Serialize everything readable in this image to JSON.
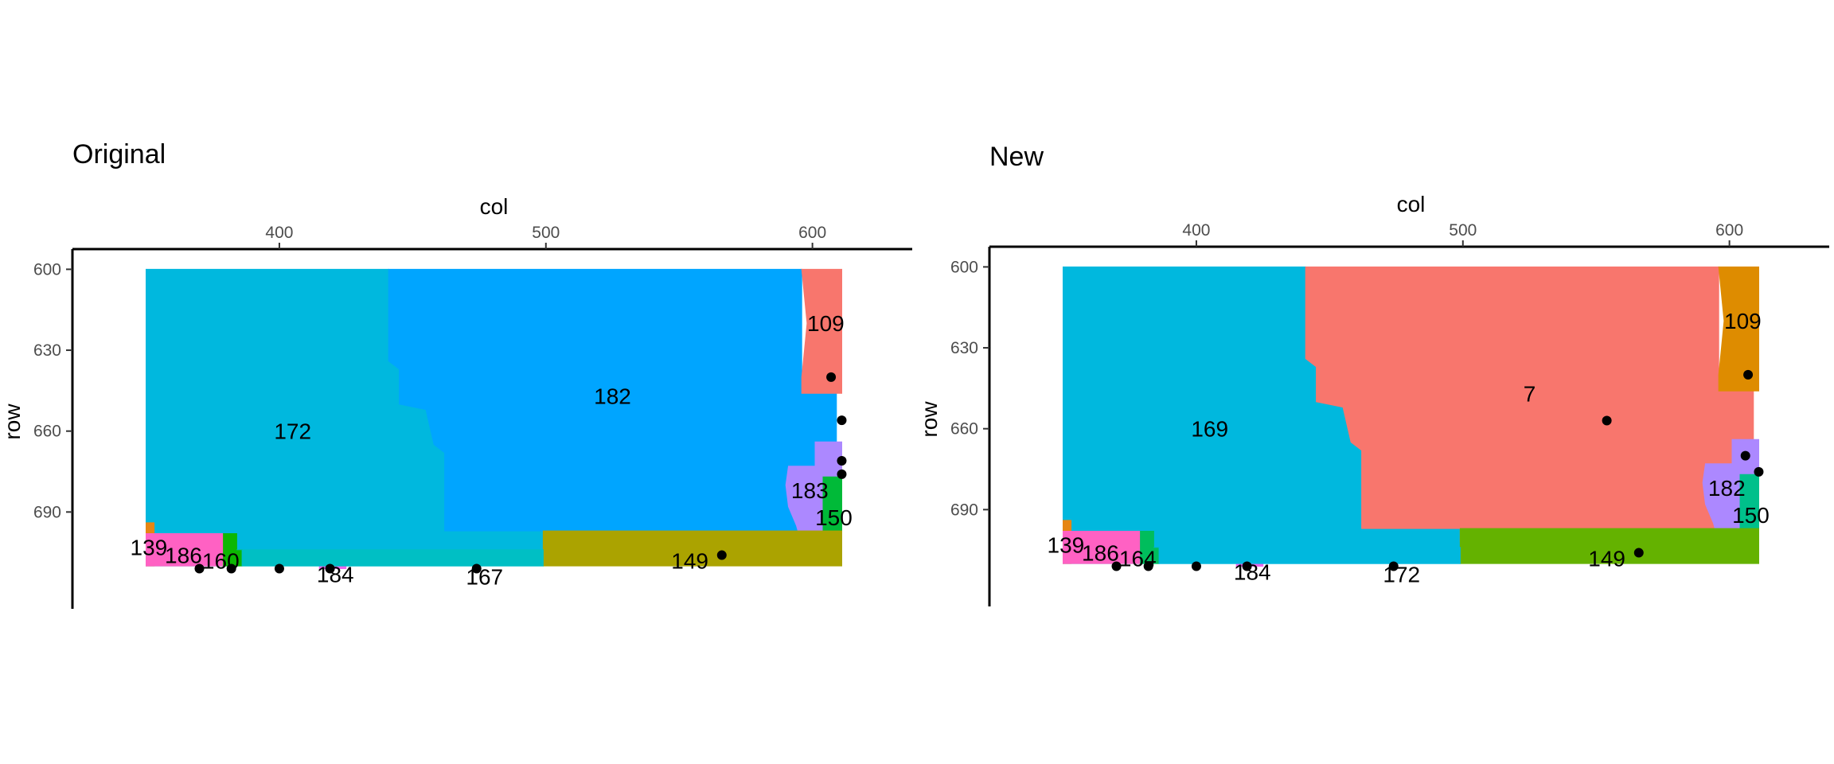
{
  "chart_data": [
    {
      "type": "heatmap",
      "subtype": "segmented-region-map",
      "title": "Original",
      "xlabel": "col",
      "ylabel": "row",
      "x_axis_position": "top",
      "y_axis_reversed": true,
      "xlim": [
        337,
        624
      ],
      "ylim": [
        599,
        720
      ],
      "x_ticks": [
        "400",
        "500",
        "600"
      ],
      "y_ticks": [
        "600",
        "630",
        "660",
        "690"
      ],
      "grid": false,
      "legend": "none",
      "regions": [
        {
          "label": "172",
          "color": "#00B8DE",
          "label_at": [
            405,
            660
          ]
        },
        {
          "label": "182",
          "color": "#00A5FF",
          "label_at": [
            525,
            647
          ]
        },
        {
          "label": "109",
          "color": "#F8766D",
          "label_at": [
            605,
            620
          ]
        },
        {
          "label": "183",
          "color": "#AC88FF",
          "label_at": [
            599,
            682
          ]
        },
        {
          "label": "150",
          "color": "#00BA38",
          "label_at": [
            608,
            692
          ]
        },
        {
          "label": "149",
          "color": "#ABA300",
          "label_at": [
            554,
            708
          ]
        },
        {
          "label": "139",
          "color": "#E68613",
          "label_at": [
            351,
            703
          ]
        },
        {
          "label": "186",
          "color": "#FF61C3",
          "label_at": [
            364,
            706
          ]
        },
        {
          "label": "160",
          "color": "#0CB702",
          "label_at": [
            378,
            708
          ]
        },
        {
          "label": "184",
          "color": "#ED68ED",
          "label_at": [
            421,
            713
          ]
        },
        {
          "label": "167",
          "color": "#00BFC4",
          "label_at": [
            477,
            714
          ]
        }
      ],
      "points": [
        {
          "col": 607,
          "row": 640
        },
        {
          "col": 611,
          "row": 656
        },
        {
          "col": 611,
          "row": 671
        },
        {
          "col": 611,
          "row": 676
        },
        {
          "col": 566,
          "row": 706
        },
        {
          "col": 370,
          "row": 711
        },
        {
          "col": 382,
          "row": 711
        },
        {
          "col": 400,
          "row": 711
        },
        {
          "col": 419,
          "row": 711
        },
        {
          "col": 474,
          "row": 711
        }
      ]
    },
    {
      "type": "heatmap",
      "subtype": "segmented-region-map",
      "title": "New",
      "xlabel": "col",
      "ylabel": "row",
      "x_axis_position": "top",
      "y_axis_reversed": true,
      "xlim": [
        337,
        624
      ],
      "ylim": [
        599,
        720
      ],
      "x_ticks": [
        "400",
        "500",
        "600"
      ],
      "y_ticks": [
        "600",
        "630",
        "660",
        "690"
      ],
      "grid": false,
      "legend": "none",
      "regions": [
        {
          "label": "169",
          "color": "#00B8DE",
          "label_at": [
            405,
            660
          ]
        },
        {
          "label": "7",
          "color": "#F8766D",
          "label_at": [
            525,
            647
          ]
        },
        {
          "label": "109",
          "color": "#DE8C00",
          "label_at": [
            605,
            620
          ]
        },
        {
          "label": "182",
          "color": "#AC88FF",
          "label_at": [
            599,
            682
          ]
        },
        {
          "label": "150",
          "color": "#00C08B",
          "label_at": [
            608,
            692
          ]
        },
        {
          "label": "149",
          "color": "#64B200",
          "label_at": [
            554,
            708
          ]
        },
        {
          "label": "139",
          "color": "#E68613",
          "label_at": [
            351,
            703
          ]
        },
        {
          "label": "186",
          "color": "#FF61C3",
          "label_at": [
            364,
            706
          ]
        },
        {
          "label": "164",
          "color": "#00BD5C",
          "label_at": [
            378,
            708
          ]
        },
        {
          "label": "184",
          "color": "#ED68ED",
          "label_at": [
            421,
            713
          ]
        },
        {
          "label": "172",
          "color": "#00B8DE",
          "label_at": [
            477,
            714
          ]
        }
      ],
      "points": [
        {
          "col": 607,
          "row": 640
        },
        {
          "col": 554,
          "row": 657
        },
        {
          "col": 606,
          "row": 670
        },
        {
          "col": 611,
          "row": 676
        },
        {
          "col": 566,
          "row": 706
        },
        {
          "col": 370,
          "row": 711
        },
        {
          "col": 382,
          "row": 711
        },
        {
          "col": 400,
          "row": 711
        },
        {
          "col": 419,
          "row": 711
        },
        {
          "col": 474,
          "row": 711
        }
      ]
    }
  ]
}
